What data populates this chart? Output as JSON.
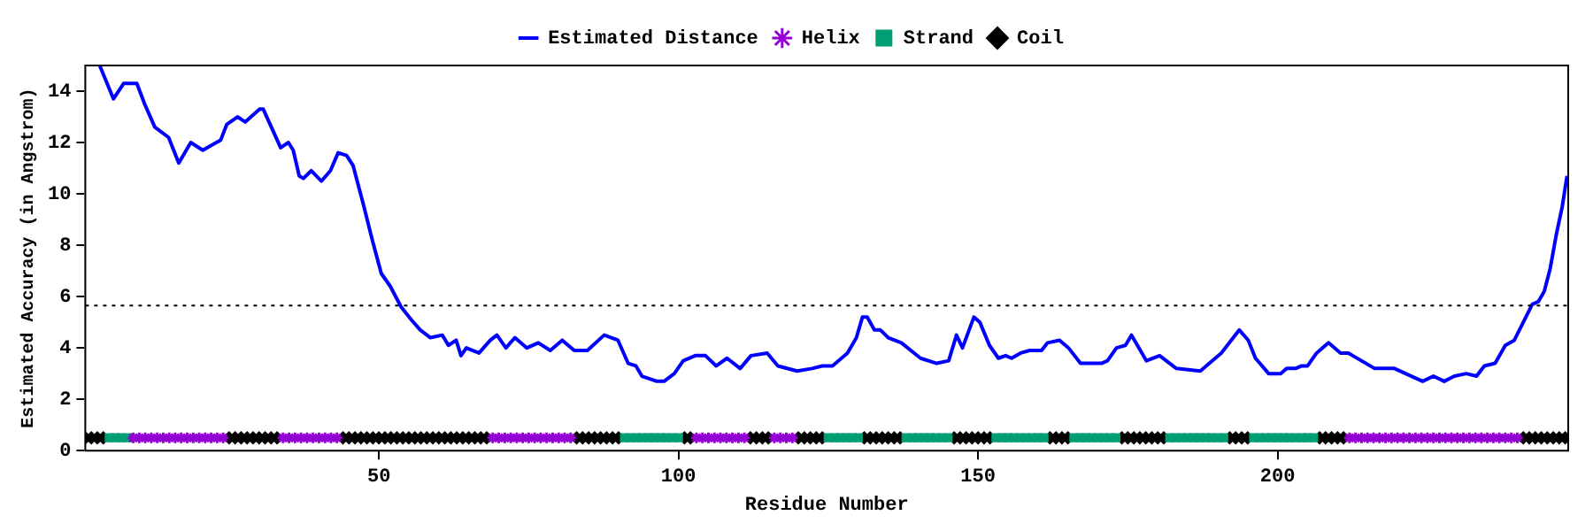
{
  "chart_data": {
    "type": "line",
    "xlabel": "Residue Number",
    "ylabel": "Estimated Accuracy (in Angstrom)",
    "xlim": [
      1,
      248.5
    ],
    "xticks": [
      50,
      100,
      150,
      200
    ],
    "ylim": [
      0,
      15
    ],
    "yticks": [
      0,
      2,
      4,
      6,
      8,
      10,
      12,
      14
    ],
    "grid": false,
    "legend": "top",
    "ref_lines": [
      {
        "axis": "y",
        "value": 5.65,
        "color": "#000000",
        "line_style": "dotted"
      }
    ],
    "series": [
      {
        "name": "Estimated Distance",
        "color": "#0000ff",
        "marker": "none",
        "line_style": "solid",
        "x": [
          3.4,
          5.7,
          7.4,
          9.6,
          10.9,
          12.6,
          14.9,
          16.6,
          18.6,
          20.6,
          23.6,
          24.6,
          26.4,
          27.7,
          30.1,
          30.7,
          33.6,
          34.9,
          35.7,
          36.7,
          37.4,
          38.7,
          40.4,
          41.9,
          43.2,
          44.6,
          45.7,
          47.4,
          48.9,
          50.4,
          51.9,
          53.7,
          55.4,
          56.9,
          58.6,
          60.6,
          61.6,
          62.9,
          63.7,
          64.6,
          66.7,
          68.6,
          69.7,
          71.2,
          72.7,
          74.7,
          76.6,
          78.6,
          80.6,
          82.6,
          84.8,
          87.6,
          89.9,
          91.6,
          92.9,
          93.9,
          96.4,
          97.6,
          99.3,
          100.8,
          102.8,
          104.5,
          106.3,
          108.1,
          110.3,
          112.1,
          114.8,
          116.6,
          119.8,
          122.3,
          124.0,
          125.7,
          128.2,
          129.7,
          130.7,
          131.5,
          132.7,
          133.7,
          135.0,
          137.2,
          140.4,
          143.1,
          145.1,
          146.4,
          147.4,
          149.3,
          150.3,
          151.9,
          153.4,
          154.6,
          155.6,
          157.1,
          158.6,
          160.6,
          161.6,
          163.6,
          165.1,
          167.1,
          170.6,
          171.6,
          173.1,
          174.6,
          175.6,
          176.6,
          178.1,
          180.3,
          183.1,
          187.1,
          188.6,
          190.6,
          193.6,
          195.1,
          196.3,
          198.5,
          200.5,
          201.5,
          203.0,
          204.0,
          205.0,
          206.5,
          208.5,
          210.5,
          211.8,
          216.2,
          219.5,
          224.2,
          226.0,
          227.8,
          229.5,
          231.5,
          233.2,
          234.5,
          236.3,
          238.0,
          239.5,
          241.0,
          242.5,
          243.5,
          244.5,
          245.5,
          246.5,
          247.5,
          248.3
        ],
        "values": [
          15,
          13.7,
          14.3,
          14.3,
          13.5,
          12.6,
          12.2,
          11.2,
          12,
          11.7,
          12.1,
          12.7,
          13,
          12.8,
          13.3,
          13.3,
          11.8,
          12,
          11.7,
          10.7,
          10.6,
          10.9,
          10.5,
          10.9,
          11.6,
          11.5,
          11.1,
          9.6,
          8.2,
          6.9,
          6.4,
          5.6,
          5.1,
          4.7,
          4.4,
          4.5,
          4.1,
          4.3,
          3.7,
          4,
          3.8,
          4.3,
          4.5,
          4,
          4.4,
          4,
          4.2,
          3.9,
          4.3,
          3.9,
          3.9,
          4.5,
          4.3,
          3.4,
          3.3,
          2.9,
          2.7,
          2.7,
          3,
          3.5,
          3.7,
          3.7,
          3.3,
          3.6,
          3.2,
          3.7,
          3.8,
          3.3,
          3.1,
          3.2,
          3.3,
          3.3,
          3.8,
          4.4,
          5.2,
          5.2,
          4.7,
          4.7,
          4.4,
          4.2,
          3.6,
          3.4,
          3.5,
          4.5,
          4,
          5.2,
          5,
          4.1,
          3.6,
          3.7,
          3.6,
          3.8,
          3.9,
          3.9,
          4.2,
          4.3,
          4,
          3.4,
          3.4,
          3.5,
          4,
          4.1,
          4.5,
          4.1,
          3.5,
          3.7,
          3.2,
          3.1,
          3.4,
          3.8,
          4.7,
          4.3,
          3.6,
          3,
          3,
          3.2,
          3.2,
          3.3,
          3.3,
          3.8,
          4.2,
          3.8,
          3.8,
          3.2,
          3.2,
          2.7,
          2.9,
          2.7,
          2.9,
          3,
          2.9,
          3.3,
          3.4,
          4.1,
          4.3,
          5,
          5.7,
          5.8,
          6.2,
          7.1,
          8.4,
          9.5,
          10.7
        ]
      },
      {
        "name": "Helix",
        "type": "scatter",
        "color": "#9400d3",
        "marker": "cross",
        "x": [
          9,
          10,
          11,
          12,
          13,
          14,
          15,
          16,
          17,
          18,
          19,
          20,
          21,
          22,
          23,
          24,
          34,
          35,
          36,
          37,
          38,
          39,
          40,
          41,
          42,
          43,
          69,
          70,
          71,
          72,
          73,
          74,
          75,
          76,
          77,
          78,
          79,
          80,
          81,
          82,
          103,
          104,
          105,
          106,
          107,
          108,
          109,
          110,
          111,
          116,
          117,
          118,
          119,
          212,
          213,
          214,
          215,
          216,
          217,
          218,
          219,
          220,
          221,
          222,
          223,
          224,
          225,
          226,
          227,
          228,
          229,
          230,
          231,
          232,
          233,
          234,
          235,
          236,
          237,
          238,
          239,
          240
        ],
        "values": [
          0.5,
          0.5,
          0.5,
          0.5,
          0.5,
          0.5,
          0.5,
          0.5,
          0.5,
          0.5,
          0.5,
          0.5,
          0.5,
          0.5,
          0.5,
          0.5,
          0.5,
          0.5,
          0.5,
          0.5,
          0.5,
          0.5,
          0.5,
          0.5,
          0.5,
          0.5,
          0.5,
          0.5,
          0.5,
          0.5,
          0.5,
          0.5,
          0.5,
          0.5,
          0.5,
          0.5,
          0.5,
          0.5,
          0.5,
          0.5,
          0.5,
          0.5,
          0.5,
          0.5,
          0.5,
          0.5,
          0.5,
          0.5,
          0.5,
          0.5,
          0.5,
          0.5,
          0.5,
          0.5,
          0.5,
          0.5,
          0.5,
          0.5,
          0.5,
          0.5,
          0.5,
          0.5,
          0.5,
          0.5,
          0.5,
          0.5,
          0.5,
          0.5,
          0.5,
          0.5,
          0.5,
          0.5,
          0.5,
          0.5,
          0.5,
          0.5,
          0.5,
          0.5,
          0.5,
          0.5,
          0.5,
          0.5
        ]
      },
      {
        "name": "Strand",
        "type": "scatter",
        "color": "#009e73",
        "marker": "square",
        "x": [
          5,
          6,
          7,
          8,
          91,
          92,
          93,
          94,
          95,
          96,
          97,
          98,
          99,
          100,
          125,
          126,
          127,
          128,
          129,
          130,
          138,
          139,
          140,
          141,
          142,
          143,
          144,
          145,
          153,
          154,
          155,
          156,
          157,
          158,
          159,
          160,
          161,
          166,
          167,
          168,
          169,
          170,
          171,
          172,
          173,
          182,
          183,
          184,
          185,
          186,
          187,
          188,
          189,
          190,
          191,
          196,
          197,
          198,
          199,
          200,
          201,
          202,
          203,
          204,
          205,
          206
        ],
        "values": [
          0.5,
          0.5,
          0.5,
          0.5,
          0.5,
          0.5,
          0.5,
          0.5,
          0.5,
          0.5,
          0.5,
          0.5,
          0.5,
          0.5,
          0.5,
          0.5,
          0.5,
          0.5,
          0.5,
          0.5,
          0.5,
          0.5,
          0.5,
          0.5,
          0.5,
          0.5,
          0.5,
          0.5,
          0.5,
          0.5,
          0.5,
          0.5,
          0.5,
          0.5,
          0.5,
          0.5,
          0.5,
          0.5,
          0.5,
          0.5,
          0.5,
          0.5,
          0.5,
          0.5,
          0.5,
          0.5,
          0.5,
          0.5,
          0.5,
          0.5,
          0.5,
          0.5,
          0.5,
          0.5,
          0.5,
          0.5,
          0.5,
          0.5,
          0.5,
          0.5,
          0.5,
          0.5,
          0.5,
          0.5,
          0.5,
          0.5
        ]
      },
      {
        "name": "Coil",
        "type": "scatter",
        "color": "#000000",
        "marker": "diamond",
        "x": [
          1,
          2,
          3,
          4,
          25,
          26,
          27,
          28,
          29,
          30,
          31,
          32,
          33,
          44,
          45,
          46,
          47,
          48,
          49,
          50,
          51,
          52,
          53,
          54,
          55,
          56,
          57,
          58,
          59,
          60,
          61,
          62,
          63,
          64,
          65,
          66,
          67,
          68,
          83,
          84,
          85,
          86,
          87,
          88,
          89,
          90,
          101,
          102,
          112,
          113,
          114,
          115,
          120,
          121,
          122,
          123,
          124,
          131,
          132,
          133,
          134,
          135,
          136,
          137,
          146,
          147,
          148,
          149,
          150,
          151,
          152,
          162,
          163,
          164,
          165,
          174,
          175,
          176,
          177,
          178,
          179,
          180,
          181,
          192,
          193,
          194,
          195,
          207,
          208,
          209,
          210,
          211,
          241,
          242,
          243,
          244,
          245,
          246,
          247,
          248
        ],
        "values": [
          0.5,
          0.5,
          0.5,
          0.5,
          0.5,
          0.5,
          0.5,
          0.5,
          0.5,
          0.5,
          0.5,
          0.5,
          0.5,
          0.5,
          0.5,
          0.5,
          0.5,
          0.5,
          0.5,
          0.5,
          0.5,
          0.5,
          0.5,
          0.5,
          0.5,
          0.5,
          0.5,
          0.5,
          0.5,
          0.5,
          0.5,
          0.5,
          0.5,
          0.5,
          0.5,
          0.5,
          0.5,
          0.5,
          0.5,
          0.5,
          0.5,
          0.5,
          0.5,
          0.5,
          0.5,
          0.5,
          0.5,
          0.5,
          0.5,
          0.5,
          0.5,
          0.5,
          0.5,
          0.5,
          0.5,
          0.5,
          0.5,
          0.5,
          0.5,
          0.5,
          0.5,
          0.5,
          0.5,
          0.5,
          0.5,
          0.5,
          0.5,
          0.5,
          0.5,
          0.5,
          0.5,
          0.5,
          0.5,
          0.5,
          0.5,
          0.5,
          0.5,
          0.5,
          0.5,
          0.5,
          0.5,
          0.5,
          0.5,
          0.5,
          0.5,
          0.5,
          0.5,
          0.5,
          0.5,
          0.5,
          0.5,
          0.5,
          0.5,
          0.5,
          0.5,
          0.5,
          0.5,
          0.5,
          0.5,
          0.5
        ]
      }
    ]
  }
}
